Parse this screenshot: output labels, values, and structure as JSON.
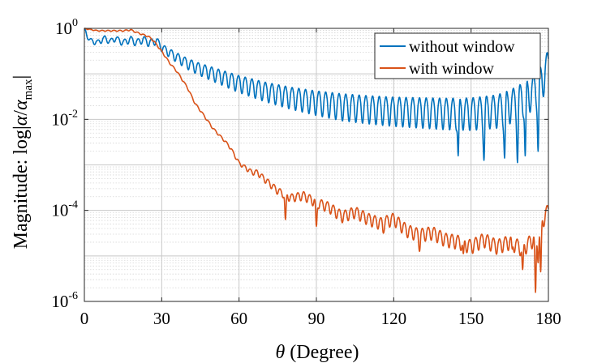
{
  "chart_data": {
    "type": "line",
    "xlabel": "θ (Degree)",
    "ylabel": "Magnitude: log|α/α_max|",
    "xlim": [
      0,
      180
    ],
    "ylim_log10": [
      -6,
      0
    ],
    "yscale": "log",
    "grid": "major and minor",
    "legend_position": "top-right",
    "x_ticks": [
      {
        "value": 0,
        "label": "0"
      },
      {
        "value": 30,
        "label": "30"
      },
      {
        "value": 60,
        "label": "60"
      },
      {
        "value": 90,
        "label": "90"
      },
      {
        "value": 120,
        "label": "120"
      },
      {
        "value": 150,
        "label": "150"
      },
      {
        "value": 180,
        "label": "180"
      }
    ],
    "y_ticks": [
      {
        "exp": 0,
        "base": "10",
        "sup": "0"
      },
      {
        "exp": -2,
        "base": "10",
        "sup": "-2"
      },
      {
        "exp": -4,
        "base": "10",
        "sup": "-4"
      },
      {
        "exp": -6,
        "base": "10",
        "sup": "-6"
      }
    ],
    "series": [
      {
        "name": "without window",
        "color": "#0072BD",
        "x": [
          0,
          2,
          5,
          8,
          10,
          12,
          15,
          18,
          20,
          23,
          25,
          28,
          30,
          35,
          40,
          45,
          50,
          55,
          60,
          70,
          80,
          90,
          100,
          110,
          120,
          130,
          140,
          150,
          160,
          165,
          170,
          175,
          178,
          180
        ],
        "log10_y": [
          0,
          -0.25,
          -0.3,
          -0.2,
          -0.28,
          -0.2,
          -0.3,
          -0.22,
          -0.3,
          -0.22,
          -0.3,
          -0.25,
          -0.4,
          -0.58,
          -0.74,
          -0.86,
          -0.96,
          -1.06,
          -1.16,
          -1.32,
          -1.45,
          -1.55,
          -1.63,
          -1.68,
          -1.72,
          -1.74,
          -1.76,
          -1.76,
          -1.7,
          -1.6,
          -1.45,
          -1.25,
          -1.0,
          -0.7
        ],
        "osc_period": 2.6,
        "osc_amp": [
          [
            0,
            0.06
          ],
          [
            30,
            0.1
          ],
          [
            60,
            0.22
          ],
          [
            100,
            0.35
          ],
          [
            150,
            0.42
          ],
          [
            180,
            0.45
          ]
        ],
        "dips": [
          [
            145,
            -2.8
          ],
          [
            155,
            -2.9
          ],
          [
            163,
            -2.85
          ],
          [
            168,
            -2.95
          ],
          [
            171,
            -2.8
          ],
          [
            176,
            -2.7
          ]
        ]
      },
      {
        "name": "with window",
        "color": "#D95319",
        "x": [
          0,
          5,
          10,
          15,
          18,
          20,
          22,
          25,
          27,
          30,
          33,
          36,
          40,
          43,
          45,
          50,
          55,
          57,
          60,
          65,
          67,
          70,
          75,
          80,
          85,
          90,
          95,
          100,
          105,
          110,
          115,
          120,
          125,
          130,
          135,
          140,
          145,
          150,
          155,
          160,
          165,
          170,
          175,
          178,
          180
        ],
        "log10_y": [
          0,
          -0.05,
          -0.05,
          -0.05,
          -0.03,
          -0.08,
          -0.12,
          -0.18,
          -0.28,
          -0.5,
          -0.75,
          -0.95,
          -1.3,
          -1.65,
          -1.8,
          -2.2,
          -2.5,
          -2.65,
          -2.95,
          -3.15,
          -3.15,
          -3.3,
          -3.55,
          -3.7,
          -3.65,
          -3.8,
          -3.9,
          -4.1,
          -4.0,
          -4.15,
          -4.25,
          -4.15,
          -4.4,
          -4.5,
          -4.45,
          -4.6,
          -4.65,
          -4.75,
          -4.6,
          -4.75,
          -4.65,
          -4.8,
          -4.55,
          -4.15,
          -3.95
        ],
        "osc_period": 2.3,
        "osc_amp": [
          [
            0,
            0.01
          ],
          [
            55,
            0.03
          ],
          [
            70,
            0.08
          ],
          [
            100,
            0.15
          ],
          [
            140,
            0.18
          ],
          [
            180,
            0.2
          ]
        ],
        "dips": [
          [
            78,
            -4.2
          ],
          [
            90,
            -4.35
          ],
          [
            116,
            -4.5
          ],
          [
            130,
            -4.9
          ],
          [
            147,
            -4.95
          ],
          [
            166,
            -4.85
          ],
          [
            170,
            -5.3
          ],
          [
            175,
            -5.8
          ],
          [
            176,
            -5.15
          ],
          [
            177,
            -5.35
          ]
        ]
      }
    ]
  }
}
